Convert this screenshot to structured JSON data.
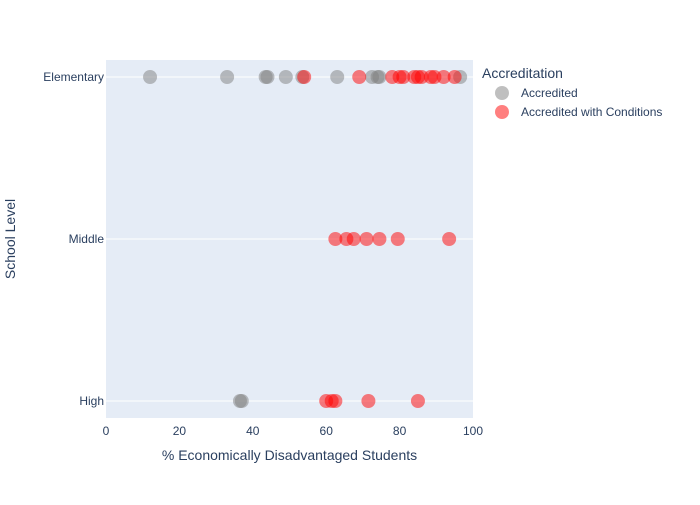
{
  "chart_data": {
    "type": "scatter",
    "title": "",
    "xlabel": "% Economically Disadvantaged Students",
    "ylabel": "School Level",
    "xlim": [
      0,
      100
    ],
    "x_ticks": [
      0,
      20,
      40,
      60,
      80,
      100
    ],
    "categories": [
      "Elementary",
      "Middle",
      "High"
    ],
    "grid": true,
    "legend_position": "top-right",
    "legend_title": "Accreditation",
    "colors": {
      "plot_background": "#e5ecf6",
      "grid": "#ffffff",
      "text": "#2a3f5f"
    },
    "series": [
      {
        "name": "Accredited",
        "color": "#808080",
        "points": [
          {
            "x": 12,
            "y": "Elementary"
          },
          {
            "x": 33,
            "y": "Elementary"
          },
          {
            "x": 43.5,
            "y": "Elementary"
          },
          {
            "x": 44,
            "y": "Elementary"
          },
          {
            "x": 49,
            "y": "Elementary"
          },
          {
            "x": 53.5,
            "y": "Elementary"
          },
          {
            "x": 63,
            "y": "Elementary"
          },
          {
            "x": 72.5,
            "y": "Elementary"
          },
          {
            "x": 74,
            "y": "Elementary"
          },
          {
            "x": 74.5,
            "y": "Elementary"
          },
          {
            "x": 96.5,
            "y": "Elementary"
          },
          {
            "x": 36.5,
            "y": "High"
          },
          {
            "x": 37,
            "y": "High"
          }
        ]
      },
      {
        "name": "Accredited with Conditions",
        "color": "#ff0000",
        "points": [
          {
            "x": 54,
            "y": "Elementary"
          },
          {
            "x": 69,
            "y": "Elementary"
          },
          {
            "x": 78,
            "y": "Elementary"
          },
          {
            "x": 80,
            "y": "Elementary"
          },
          {
            "x": 81,
            "y": "Elementary"
          },
          {
            "x": 84,
            "y": "Elementary"
          },
          {
            "x": 85,
            "y": "Elementary"
          },
          {
            "x": 86,
            "y": "Elementary"
          },
          {
            "x": 88.5,
            "y": "Elementary"
          },
          {
            "x": 89.5,
            "y": "Elementary"
          },
          {
            "x": 92,
            "y": "Elementary"
          },
          {
            "x": 95,
            "y": "Elementary"
          },
          {
            "x": 62.5,
            "y": "Middle"
          },
          {
            "x": 65.5,
            "y": "Middle"
          },
          {
            "x": 67.5,
            "y": "Middle"
          },
          {
            "x": 71,
            "y": "Middle"
          },
          {
            "x": 74.5,
            "y": "Middle"
          },
          {
            "x": 79.5,
            "y": "Middle"
          },
          {
            "x": 93.5,
            "y": "Middle"
          },
          {
            "x": 60,
            "y": "High"
          },
          {
            "x": 61.5,
            "y": "High"
          },
          {
            "x": 62.5,
            "y": "High"
          },
          {
            "x": 71.5,
            "y": "High"
          },
          {
            "x": 85,
            "y": "High"
          }
        ]
      }
    ]
  }
}
